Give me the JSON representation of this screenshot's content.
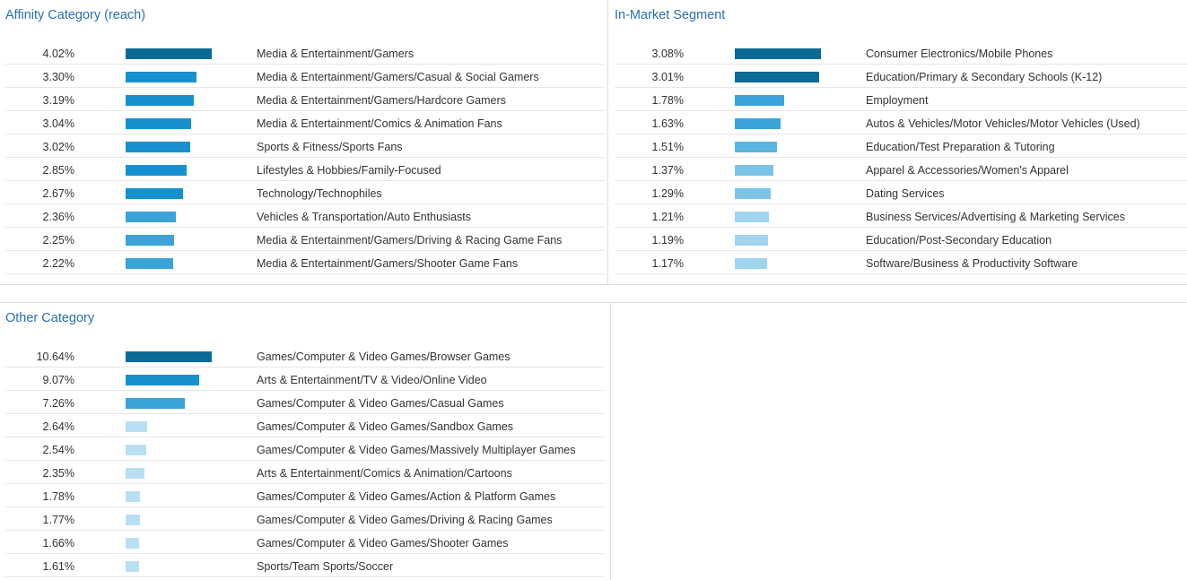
{
  "colors": {
    "title": "#2a6fb0",
    "bar_shades": [
      "#0b6a96",
      "#1890cf",
      "#3aa3d8",
      "#5bb4e0",
      "#7cc3e8",
      "#a0d4ef",
      "#b9dff3"
    ]
  },
  "chart_data": [
    {
      "type": "bar",
      "orientation": "horizontal",
      "title": "Affinity Category (reach)",
      "unit": "%",
      "categories": [
        "Media & Entertainment/Gamers",
        "Media & Entertainment/Gamers/Casual & Social Gamers",
        "Media & Entertainment/Gamers/Hardcore Gamers",
        "Media & Entertainment/Comics & Animation Fans",
        "Sports & Fitness/Sports Fans",
        "Lifestyles & Hobbies/Family-Focused",
        "Technology/Technophiles",
        "Vehicles & Transportation/Auto Enthusiasts",
        "Media & Entertainment/Gamers/Driving & Racing Game Fans",
        "Media & Entertainment/Gamers/Shooter Game Fans"
      ],
      "values": [
        4.02,
        3.3,
        3.19,
        3.04,
        3.02,
        2.85,
        2.67,
        2.36,
        2.25,
        2.22
      ],
      "labels": [
        "4.02%",
        "3.30%",
        "3.19%",
        "3.04%",
        "3.02%",
        "2.85%",
        "2.67%",
        "2.36%",
        "2.25%",
        "2.22%"
      ],
      "shades": [
        0,
        1,
        1,
        1,
        1,
        1,
        1,
        2,
        2,
        2
      ]
    },
    {
      "type": "bar",
      "orientation": "horizontal",
      "title": "In-Market Segment",
      "unit": "%",
      "categories": [
        "Consumer Electronics/Mobile Phones",
        "Education/Primary & Secondary Schools (K-12)",
        "Employment",
        "Autos & Vehicles/Motor Vehicles/Motor Vehicles (Used)",
        "Education/Test Preparation & Tutoring",
        "Apparel & Accessories/Women's Apparel",
        "Dating Services",
        "Business Services/Advertising & Marketing Services",
        "Education/Post-Secondary Education",
        "Software/Business & Productivity Software"
      ],
      "values": [
        3.08,
        3.01,
        1.78,
        1.63,
        1.51,
        1.37,
        1.29,
        1.21,
        1.19,
        1.17
      ],
      "labels": [
        "3.08%",
        "3.01%",
        "1.78%",
        "1.63%",
        "1.51%",
        "1.37%",
        "1.29%",
        "1.21%",
        "1.19%",
        "1.17%"
      ],
      "shades": [
        0,
        0,
        2,
        2,
        3,
        4,
        4,
        5,
        5,
        5
      ]
    },
    {
      "type": "bar",
      "orientation": "horizontal",
      "title": "Other Category",
      "unit": "%",
      "categories": [
        "Games/Computer & Video Games/Browser Games",
        "Arts & Entertainment/TV & Video/Online Video",
        "Games/Computer & Video Games/Casual Games",
        "Games/Computer & Video Games/Sandbox Games",
        "Games/Computer & Video Games/Massively Multiplayer Games",
        "Arts & Entertainment/Comics & Animation/Cartoons",
        "Games/Computer & Video Games/Action & Platform Games",
        "Games/Computer & Video Games/Driving & Racing Games",
        "Games/Computer & Video Games/Shooter Games",
        "Sports/Team Sports/Soccer"
      ],
      "values": [
        10.64,
        9.07,
        7.26,
        2.64,
        2.54,
        2.35,
        1.78,
        1.77,
        1.66,
        1.61
      ],
      "labels": [
        "10.64%",
        "9.07%",
        "7.26%",
        "2.64%",
        "2.54%",
        "2.35%",
        "1.78%",
        "1.77%",
        "1.66%",
        "1.61%"
      ],
      "shades": [
        0,
        1,
        2,
        6,
        6,
        6,
        6,
        6,
        6,
        6
      ]
    }
  ]
}
